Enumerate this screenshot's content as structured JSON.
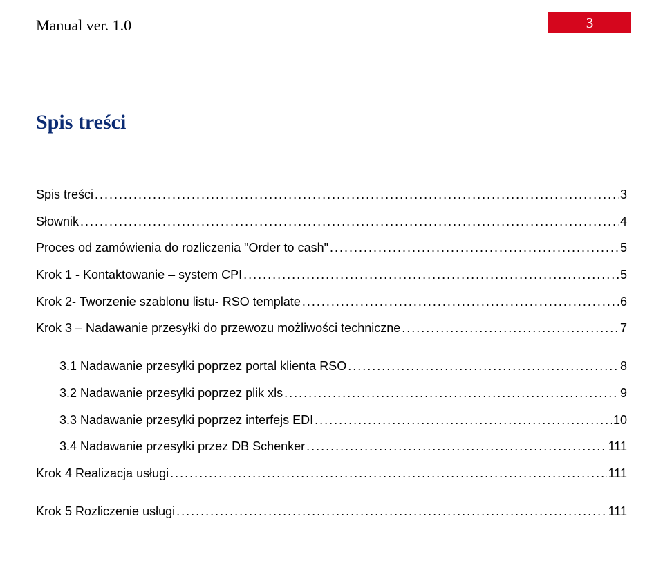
{
  "header": {
    "version_text": "Manual ver. 1.0",
    "page_number": "3"
  },
  "colors": {
    "heading_color": "#0b2b73",
    "badge_bg": "#d5061d",
    "badge_text": "#ffffff",
    "body_text": "#000000",
    "page_bg": "#ffffff"
  },
  "typography": {
    "heading_font": "Times New Roman",
    "heading_size_pt": 22,
    "version_font": "Times New Roman",
    "version_size_pt": 17,
    "body_font": "Verdana",
    "body_size_pt": 13
  },
  "title": "Spis treści",
  "toc": [
    {
      "label": "Spis treści",
      "page": "3",
      "indent": 0
    },
    {
      "label": "Słownik",
      "page": "4",
      "indent": 0
    },
    {
      "label": "Proces od zamówienia do rozliczenia \"Order to cash\"",
      "page": "5",
      "indent": 0
    },
    {
      "label": "Krok 1 - Kontaktowanie – system CPI",
      "page": "5",
      "indent": 0
    },
    {
      "label": "Krok 2- Tworzenie szablonu listu- RSO template",
      "page": "6",
      "indent": 0
    },
    {
      "label": "Krok 3 – Nadawanie przesyłki do przewozu możliwości techniczne",
      "page": "7",
      "indent": 0
    },
    {
      "label": "3.1 Nadawanie przesyłki poprzez portal klienta RSO",
      "page": "8",
      "indent": 1
    },
    {
      "label": "3.2 Nadawanie przesyłki poprzez plik xls",
      "page": "9",
      "indent": 1
    },
    {
      "label": "3.3 Nadawanie przesyłki poprzez interfejs EDI",
      "page": "10",
      "indent": 1
    },
    {
      "label": "3.4 Nadawanie przesyłki przez DB Schenker",
      "page": "111",
      "indent": 1
    },
    {
      "label": "Krok 4 Realizacja usługi",
      "page": "111",
      "indent": 0
    },
    {
      "label": "Krok 5 Rozliczenie usługi",
      "page": "111",
      "indent": 0
    }
  ]
}
